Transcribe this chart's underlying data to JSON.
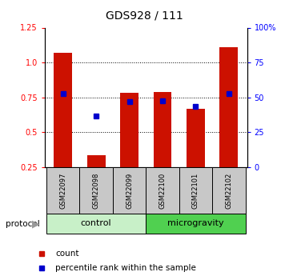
{
  "title": "GDS928 / 111",
  "samples": [
    "GSM22097",
    "GSM22098",
    "GSM22099",
    "GSM22100",
    "GSM22101",
    "GSM22102"
  ],
  "red_values": [
    1.07,
    0.335,
    0.78,
    0.79,
    0.67,
    1.11
  ],
  "blue_values": [
    0.775,
    0.615,
    0.72,
    0.725,
    0.685,
    0.775
  ],
  "left_ylim": [
    0.25,
    1.25
  ],
  "left_yticks": [
    0.25,
    0.5,
    0.75,
    1.0,
    1.25
  ],
  "right_yticks": [
    0,
    25,
    50,
    75,
    100
  ],
  "right_ylim": [
    0,
    100
  ],
  "right_ytick_labels": [
    "0",
    "25",
    "50",
    "75",
    "100%"
  ],
  "bar_color": "#cc1100",
  "blue_color": "#0000cc",
  "sample_bg": "#c8c8c8",
  "ctrl_color": "#c8f0c8",
  "mg_color": "#50d050",
  "legend_count_label": "count",
  "legend_pct_label": "percentile rank within the sample",
  "bar_width": 0.55,
  "ctrl_label": "control",
  "mg_label": "microgravity",
  "protocol_label": "protocol"
}
